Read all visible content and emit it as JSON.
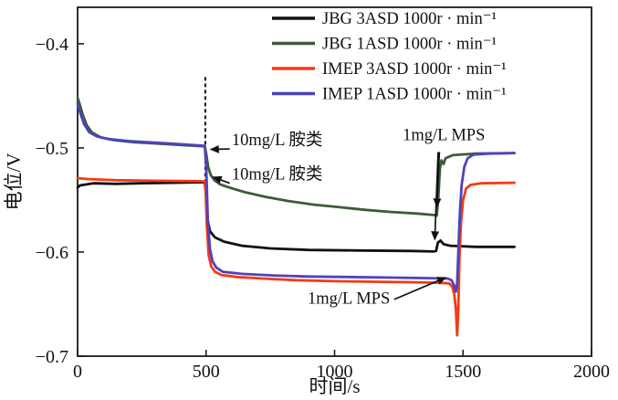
{
  "chart_data": {
    "type": "line",
    "title": "",
    "xlabel": "时间/s",
    "ylabel": "电位/V",
    "xlim": [
      0,
      2000
    ],
    "ylim": [
      -0.7,
      -0.365
    ],
    "xticks": [
      0,
      500,
      1000,
      1500,
      2000
    ],
    "yticks": [
      -0.4,
      -0.5,
      -0.6,
      -0.7
    ],
    "grid": false,
    "legend_position": "top-center",
    "series": [
      {
        "name": "JBG 3ASD 1000r · min⁻¹",
        "color": "#111111",
        "points": [
          [
            0,
            -0.538
          ],
          [
            10,
            -0.536
          ],
          [
            60,
            -0.534
          ],
          [
            150,
            -0.5345
          ],
          [
            240,
            -0.534
          ],
          [
            480,
            -0.533
          ],
          [
            495,
            -0.533
          ],
          [
            500,
            -0.545
          ],
          [
            505,
            -0.568
          ],
          [
            515,
            -0.58
          ],
          [
            535,
            -0.586
          ],
          [
            570,
            -0.59
          ],
          [
            640,
            -0.594
          ],
          [
            750,
            -0.5965
          ],
          [
            900,
            -0.598
          ],
          [
            1100,
            -0.5985
          ],
          [
            1300,
            -0.599
          ],
          [
            1385,
            -0.5995
          ],
          [
            1395,
            -0.599
          ],
          [
            1402,
            -0.591
          ],
          [
            1412,
            -0.589
          ],
          [
            1425,
            -0.5925
          ],
          [
            1450,
            -0.594
          ],
          [
            1550,
            -0.595
          ],
          [
            1700,
            -0.595
          ]
        ]
      },
      {
        "name": "JBG 1ASD 1000r · min⁻¹",
        "color": "#3c5c38",
        "points": [
          [
            0,
            -0.452
          ],
          [
            8,
            -0.458
          ],
          [
            20,
            -0.468
          ],
          [
            35,
            -0.478
          ],
          [
            55,
            -0.485
          ],
          [
            90,
            -0.49
          ],
          [
            140,
            -0.4925
          ],
          [
            220,
            -0.4945
          ],
          [
            320,
            -0.496
          ],
          [
            420,
            -0.4975
          ],
          [
            495,
            -0.4985
          ],
          [
            500,
            -0.505
          ],
          [
            508,
            -0.518
          ],
          [
            518,
            -0.526
          ],
          [
            532,
            -0.531
          ],
          [
            555,
            -0.535
          ],
          [
            590,
            -0.538
          ],
          [
            650,
            -0.5425
          ],
          [
            730,
            -0.547
          ],
          [
            820,
            -0.551
          ],
          [
            920,
            -0.5545
          ],
          [
            1020,
            -0.557
          ],
          [
            1120,
            -0.5595
          ],
          [
            1220,
            -0.5615
          ],
          [
            1320,
            -0.563
          ],
          [
            1390,
            -0.5645
          ],
          [
            1398,
            -0.565
          ],
          [
            1404,
            -0.548
          ],
          [
            1410,
            -0.52
          ],
          [
            1416,
            -0.512
          ],
          [
            1424,
            -0.5155
          ],
          [
            1432,
            -0.51
          ],
          [
            1460,
            -0.507
          ],
          [
            1550,
            -0.5055
          ],
          [
            1700,
            -0.505
          ]
        ]
      },
      {
        "name": "IMEP 3ASD 1000r · min⁻¹",
        "color": "#f43a16",
        "points": [
          [
            0,
            -0.529
          ],
          [
            40,
            -0.53
          ],
          [
            150,
            -0.531
          ],
          [
            300,
            -0.5315
          ],
          [
            480,
            -0.532
          ],
          [
            497,
            -0.5325
          ],
          [
            503,
            -0.575
          ],
          [
            510,
            -0.603
          ],
          [
            520,
            -0.614
          ],
          [
            535,
            -0.619
          ],
          [
            560,
            -0.622
          ],
          [
            620,
            -0.624
          ],
          [
            720,
            -0.6255
          ],
          [
            850,
            -0.627
          ],
          [
            1000,
            -0.628
          ],
          [
            1150,
            -0.6285
          ],
          [
            1300,
            -0.629
          ],
          [
            1400,
            -0.6295
          ],
          [
            1445,
            -0.63
          ],
          [
            1458,
            -0.633
          ],
          [
            1466,
            -0.641
          ],
          [
            1472,
            -0.655
          ],
          [
            1477,
            -0.68
          ],
          [
            1481,
            -0.66
          ],
          [
            1486,
            -0.607
          ],
          [
            1492,
            -0.572
          ],
          [
            1500,
            -0.55
          ],
          [
            1512,
            -0.539
          ],
          [
            1530,
            -0.5355
          ],
          [
            1570,
            -0.534
          ],
          [
            1700,
            -0.5335
          ]
        ]
      },
      {
        "name": "IMEP 1ASD 1000r · min⁻¹",
        "color": "#4d43bf",
        "points": [
          [
            0,
            -0.458
          ],
          [
            10,
            -0.466
          ],
          [
            25,
            -0.477
          ],
          [
            45,
            -0.485
          ],
          [
            75,
            -0.489
          ],
          [
            120,
            -0.4915
          ],
          [
            200,
            -0.4935
          ],
          [
            300,
            -0.495
          ],
          [
            400,
            -0.4965
          ],
          [
            495,
            -0.498
          ],
          [
            501,
            -0.52
          ],
          [
            507,
            -0.57
          ],
          [
            515,
            -0.597
          ],
          [
            525,
            -0.609
          ],
          [
            540,
            -0.615
          ],
          [
            565,
            -0.619
          ],
          [
            640,
            -0.621
          ],
          [
            760,
            -0.6225
          ],
          [
            900,
            -0.6235
          ],
          [
            1050,
            -0.624
          ],
          [
            1200,
            -0.6245
          ],
          [
            1350,
            -0.625
          ],
          [
            1440,
            -0.6255
          ],
          [
            1455,
            -0.627
          ],
          [
            1465,
            -0.632
          ],
          [
            1472,
            -0.638
          ],
          [
            1477,
            -0.63
          ],
          [
            1482,
            -0.597
          ],
          [
            1488,
            -0.56
          ],
          [
            1495,
            -0.535
          ],
          [
            1505,
            -0.518
          ],
          [
            1518,
            -0.51
          ],
          [
            1540,
            -0.5065
          ],
          [
            1600,
            -0.5055
          ],
          [
            1700,
            -0.505
          ]
        ]
      }
    ],
    "annotations": {
      "labels": [
        {
          "text": "10mg/L 胺类",
          "x": 600,
          "y": -0.4975,
          "anchor": "start"
        },
        {
          "text": "10mg/L 胺类",
          "x": 600,
          "y": -0.5305,
          "anchor": "start"
        },
        {
          "text": "1mg/L MPS",
          "x": 1265,
          "y": -0.4925,
          "anchor": "start"
        },
        {
          "text": "1mg/L MPS",
          "x": 895,
          "y": -0.6495,
          "anchor": "start"
        }
      ],
      "arrows": [
        {
          "x1": 592,
          "y1": -0.501,
          "x2": 518,
          "y2": -0.5015
        },
        {
          "x1": 592,
          "y1": -0.534,
          "x2": 528,
          "y2": -0.528
        },
        {
          "x1": 1408,
          "y1": -0.504,
          "x2": 1398,
          "y2": -0.5565
        },
        {
          "x1": 1403,
          "y1": -0.504,
          "x2": 1390,
          "y2": -0.588
        },
        {
          "x1": 1232,
          "y1": -0.6455,
          "x2": 1432,
          "y2": -0.6245
        }
      ],
      "dashed_segments": [
        {
          "x1": 497,
          "y1": -0.432,
          "x2": 497,
          "y2": -0.533
        }
      ]
    }
  }
}
